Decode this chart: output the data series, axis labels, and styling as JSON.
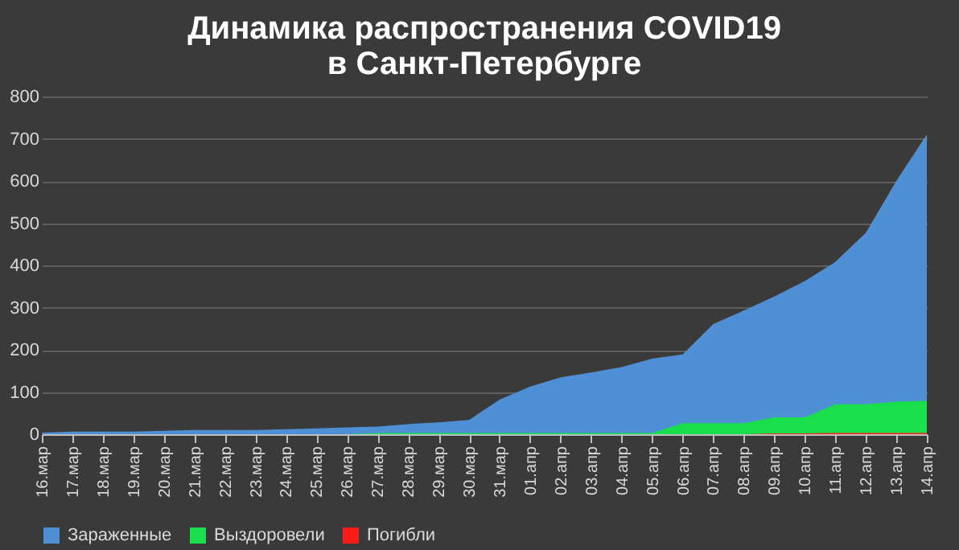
{
  "chart_data": {
    "type": "area",
    "title": [
      "Динамика  распространения  COVID19",
      "в Санкт-Петербурге"
    ],
    "categories": [
      "16.мар",
      "17.мар",
      "18.мар",
      "19.мар",
      "20.мар",
      "21.мар",
      "22.мар",
      "23.мар",
      "24.мар",
      "25.мар",
      "26.мар",
      "27.мар",
      "28.мар",
      "29.мар",
      "30.мар",
      "31.мар",
      "01.апр",
      "02.апр",
      "03.апр",
      "04.апр",
      "05.апр",
      "06.апр",
      "07.апр",
      "08.апр",
      "09.апр",
      "10.апр",
      "11.апр",
      "12.апр",
      "13.апр",
      "14.апр"
    ],
    "series": [
      {
        "name": "Зараженные",
        "color": "#4f8fd6",
        "values": [
          4,
          6,
          6,
          6,
          8,
          10,
          10,
          10,
          12,
          14,
          16,
          18,
          24,
          28,
          34,
          82,
          113,
          135,
          146,
          159,
          179,
          189,
          261,
          293,
          326,
          363,
          408,
          477,
          600,
          710
        ]
      },
      {
        "name": "Выздоровели",
        "color": "#19e04a",
        "values": [
          0,
          0,
          0,
          0,
          0,
          0,
          0,
          0,
          0,
          0,
          0,
          3,
          3,
          3,
          3,
          3,
          3,
          3,
          3,
          3,
          3,
          26,
          26,
          26,
          40,
          40,
          71,
          71,
          77,
          79
        ]
      },
      {
        "name": "Погибли",
        "color": "#ff1a1a",
        "values": [
          0,
          0,
          0,
          0,
          0,
          0,
          0,
          0,
          0,
          0,
          0,
          0,
          0,
          0,
          0,
          0,
          0,
          0,
          0,
          0,
          0,
          0,
          0,
          0,
          2,
          2,
          3,
          3,
          3,
          3
        ]
      }
    ],
    "ylim": [
      0,
      800
    ],
    "yticks": [
      0,
      100,
      200,
      300,
      400,
      500,
      600,
      700,
      800
    ],
    "grid": "y",
    "legend": "bottom"
  }
}
